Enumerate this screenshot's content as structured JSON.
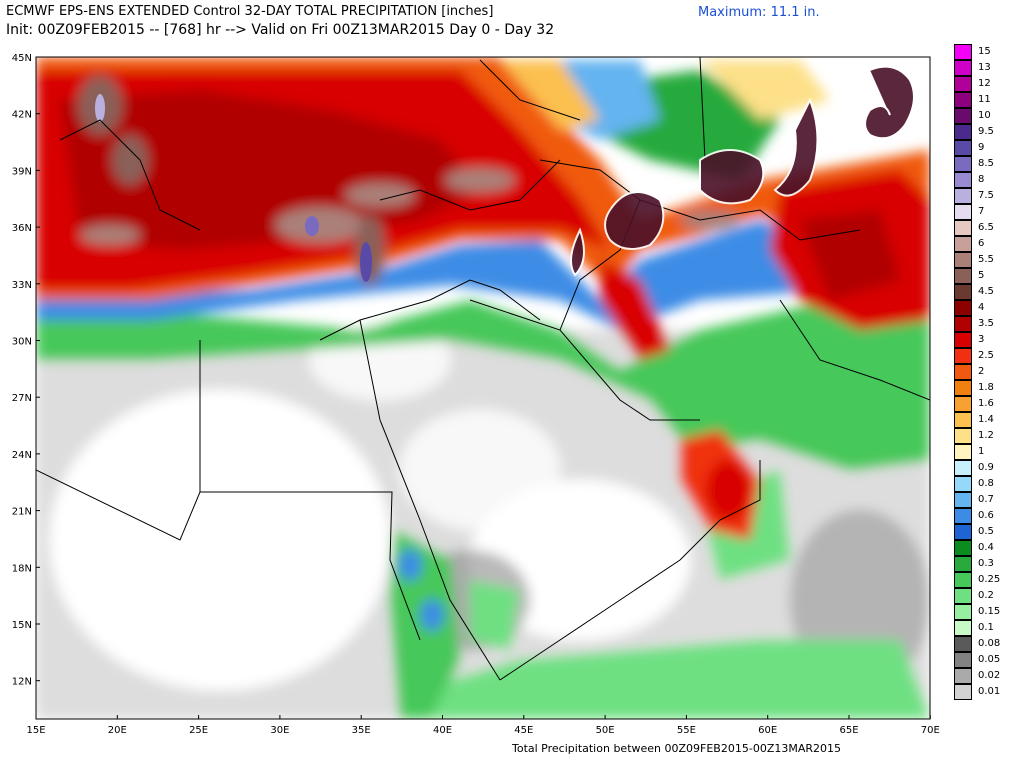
{
  "header": {
    "title": "ECMWF EPS-ENS EXTENDED Control 32-DAY TOTAL PRECIPITATION [inches]",
    "subtitle": "Init: 00Z09FEB2015 -- [768] hr --> Valid on Fri 00Z13MAR2015  Day 0 - Day 32",
    "maximum": "Maximum:  11.1 in."
  },
  "footer": "Total Precipitation between 00Z09FEB2015-00Z13MAR2015",
  "map": {
    "lat_labels": [
      "45N",
      "42N",
      "39N",
      "36N",
      "33N",
      "30N",
      "27N",
      "24N",
      "21N",
      "18N",
      "15N",
      "12N"
    ],
    "lon_labels": [
      "15E",
      "20E",
      "25E",
      "30E",
      "35E",
      "40E",
      "45E",
      "50E",
      "55E",
      "60E",
      "65E",
      "70E"
    ]
  },
  "legend": {
    "items": [
      {
        "label": "15",
        "color": "#f400f4"
      },
      {
        "label": "13",
        "color": "#d000c8"
      },
      {
        "label": "12",
        "color": "#b0009a"
      },
      {
        "label": "11",
        "color": "#8c0080"
      },
      {
        "label": "10",
        "color": "#6a0a6a"
      },
      {
        "label": "9.5",
        "color": "#4a2a8c"
      },
      {
        "label": "9",
        "color": "#5a4aa8"
      },
      {
        "label": "8.5",
        "color": "#7a6ac0"
      },
      {
        "label": "8",
        "color": "#9a8ad0"
      },
      {
        "label": "7.5",
        "color": "#bab0e0"
      },
      {
        "label": "7",
        "color": "#e6dcf0"
      },
      {
        "label": "6.5",
        "color": "#e6c8c0"
      },
      {
        "label": "6",
        "color": "#c8a09a"
      },
      {
        "label": "5.5",
        "color": "#aa8078"
      },
      {
        "label": "5",
        "color": "#8a6058"
      },
      {
        "label": "4.5",
        "color": "#6a3a30"
      },
      {
        "label": "4",
        "color": "#8c0000"
      },
      {
        "label": "3.5",
        "color": "#b00000"
      },
      {
        "label": "3",
        "color": "#d80000"
      },
      {
        "label": "2.5",
        "color": "#f03010"
      },
      {
        "label": "2",
        "color": "#f05a10"
      },
      {
        "label": "1.8",
        "color": "#f08010"
      },
      {
        "label": "1.6",
        "color": "#f8a030"
      },
      {
        "label": "1.4",
        "color": "#fcc050"
      },
      {
        "label": "1.2",
        "color": "#fde088"
      },
      {
        "label": "1",
        "color": "#fff4c0"
      },
      {
        "label": "0.9",
        "color": "#c8f0fc"
      },
      {
        "label": "0.8",
        "color": "#96d8f8"
      },
      {
        "label": "0.7",
        "color": "#64b4f0"
      },
      {
        "label": "0.6",
        "color": "#3c8ce6"
      },
      {
        "label": "0.5",
        "color": "#1e64d2"
      },
      {
        "label": "0.4",
        "color": "#0a8c1e"
      },
      {
        "label": "0.3",
        "color": "#28aa3c"
      },
      {
        "label": "0.25",
        "color": "#46c85a"
      },
      {
        "label": "0.2",
        "color": "#6ee082"
      },
      {
        "label": "0.15",
        "color": "#96f0a0"
      },
      {
        "label": "0.1",
        "color": "#c8fac8"
      },
      {
        "label": "0.08",
        "color": "#5a5a5a"
      },
      {
        "label": "0.05",
        "color": "#828282"
      },
      {
        "label": "0.02",
        "color": "#aaaaaa"
      },
      {
        "label": "0.01",
        "color": "#d2d2d2"
      }
    ]
  }
}
